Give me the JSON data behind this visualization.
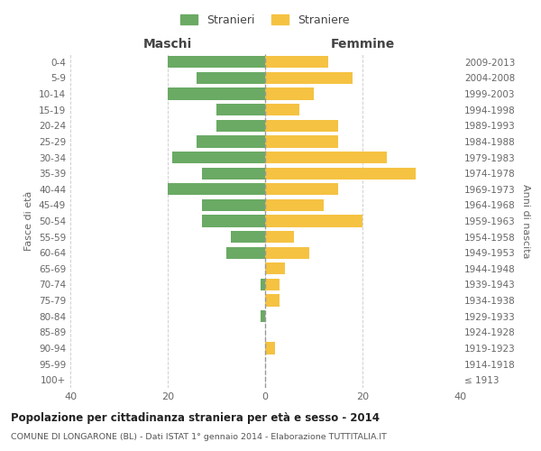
{
  "age_groups": [
    "100+",
    "95-99",
    "90-94",
    "85-89",
    "80-84",
    "75-79",
    "70-74",
    "65-69",
    "60-64",
    "55-59",
    "50-54",
    "45-49",
    "40-44",
    "35-39",
    "30-34",
    "25-29",
    "20-24",
    "15-19",
    "10-14",
    "5-9",
    "0-4"
  ],
  "birth_years": [
    "≤ 1913",
    "1914-1918",
    "1919-1923",
    "1924-1928",
    "1929-1933",
    "1934-1938",
    "1939-1943",
    "1944-1948",
    "1949-1953",
    "1954-1958",
    "1959-1963",
    "1964-1968",
    "1969-1973",
    "1974-1978",
    "1979-1983",
    "1984-1988",
    "1989-1993",
    "1994-1998",
    "1999-2003",
    "2004-2008",
    "2009-2013"
  ],
  "males": [
    0,
    0,
    0,
    0,
    1,
    0,
    1,
    0,
    8,
    7,
    13,
    13,
    20,
    13,
    19,
    14,
    10,
    10,
    20,
    14,
    20
  ],
  "females": [
    0,
    0,
    2,
    0,
    0,
    3,
    3,
    4,
    9,
    6,
    20,
    12,
    15,
    31,
    25,
    15,
    15,
    7,
    10,
    18,
    13
  ],
  "male_color": "#6aaa64",
  "female_color": "#f5c242",
  "title": "Popolazione per cittadinanza straniera per età e sesso - 2014",
  "subtitle": "COMUNE DI LONGARONE (BL) - Dati ISTAT 1° gennaio 2014 - Elaborazione TUTTITALIA.IT",
  "ylabel_left": "Fasce di età",
  "ylabel_right": "Anni di nascita",
  "xlabel_left": "Maschi",
  "xlabel_right": "Femmine",
  "legend_male": "Stranieri",
  "legend_female": "Straniere",
  "xlim": 40,
  "bg_color": "#ffffff",
  "grid_color": "#d0d0d0"
}
